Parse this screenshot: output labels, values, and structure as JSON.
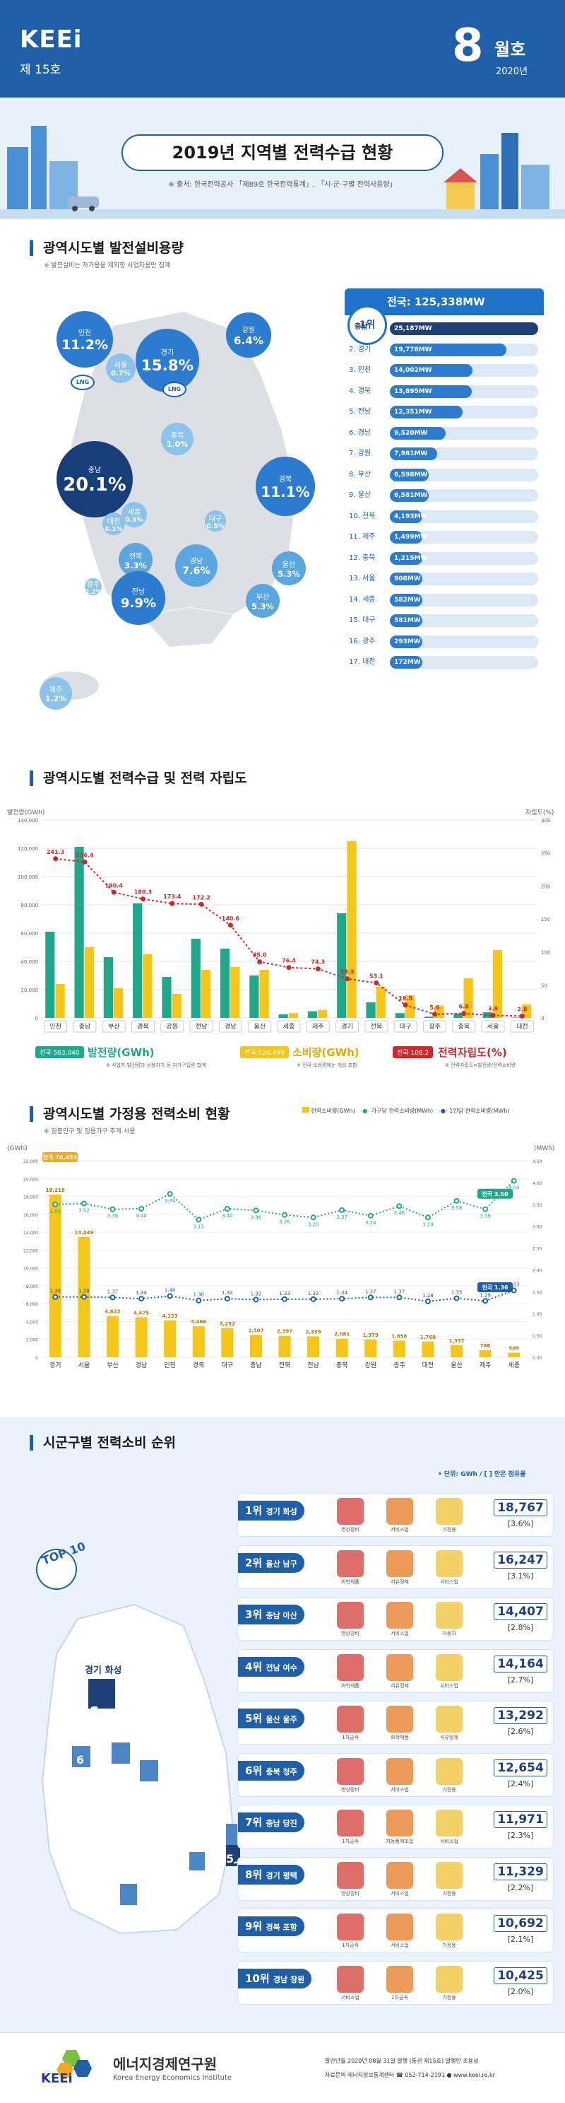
{
  "header": {
    "brand": "KEEi",
    "issue": "제 15호",
    "month": "8",
    "month_label": "월호",
    "year": "2020년"
  },
  "banner": {
    "title": "2019년 지역별 전력수급 현황",
    "source": "※ 출처: 한국전력공사 「제89호 한국전력통계」, 「시·군·구별 전력사용량」"
  },
  "sec1": {
    "title": "광역시도별 발전설비용량",
    "note": "※ 발전설비는 자가용을 제외한 사업자용만 집계",
    "bubbles": [
      {
        "region": "인천",
        "pct": "11.2%",
        "color": "#2b7bd0"
      },
      {
        "region": "경기",
        "pct": "15.8%",
        "color": "#2b7bd0"
      },
      {
        "region": "강원",
        "pct": "6.4%",
        "color": "#2b7bd0"
      },
      {
        "region": "서울",
        "pct": "0.7%",
        "color": "#8bc3ea"
      },
      {
        "region": "충북",
        "pct": "1.0%",
        "color": "#8bc3ea"
      },
      {
        "region": "세종",
        "pct": "0.5%",
        "color": "#8bc3ea"
      },
      {
        "region": "충남",
        "pct": "20.1%",
        "color": "#163f7a"
      },
      {
        "region": "경북",
        "pct": "11.1%",
        "color": "#2b7bd0"
      },
      {
        "region": "대전",
        "pct": "0.1%",
        "color": "#8bc3ea"
      },
      {
        "region": "전북",
        "pct": "3.3%",
        "color": "#5aa6e0"
      },
      {
        "region": "대구",
        "pct": "0.5%",
        "color": "#8bc3ea"
      },
      {
        "region": "경남",
        "pct": "7.6%",
        "color": "#5aa6e0"
      },
      {
        "region": "울산",
        "pct": "5.3%",
        "color": "#5aa6e0"
      },
      {
        "region": "광주",
        "pct": "0.2%",
        "color": "#8bc3ea"
      },
      {
        "region": "전남",
        "pct": "9.9%",
        "color": "#2b7bd0"
      },
      {
        "region": "부산",
        "pct": "5.3%",
        "color": "#5aa6e0"
      },
      {
        "region": "제주",
        "pct": "1.2%",
        "color": "#8bc3ea"
      }
    ],
    "lng": "LNG",
    "total": "전국: 125,338MW",
    "rank1": "1위",
    "ranks": [
      {
        "label": "충남",
        "value": "25,187MW"
      },
      {
        "label": "2. 경기",
        "value": "19,778MW"
      },
      {
        "label": "3. 인천",
        "value": "14,002MW"
      },
      {
        "label": "4. 경북",
        "value": "13,895MW"
      },
      {
        "label": "5. 전남",
        "value": "12,351MW"
      },
      {
        "label": "6. 경남",
        "value": "9,520MW"
      },
      {
        "label": "7. 강원",
        "value": "7,981MW"
      },
      {
        "label": "8. 부산",
        "value": "6,598MW"
      },
      {
        "label": "9. 울산",
        "value": "6,581MW"
      },
      {
        "label": "10. 전북",
        "value": "4,193MW"
      },
      {
        "label": "11. 제주",
        "value": "1,499MW"
      },
      {
        "label": "12. 충북",
        "value": "1,215MW"
      },
      {
        "label": "13. 서울",
        "value": "908MW"
      },
      {
        "label": "14. 세종",
        "value": "582MW"
      },
      {
        "label": "15. 대구",
        "value": "581MW"
      },
      {
        "label": "16. 광주",
        "value": "293MW"
      },
      {
        "label": "17. 대전",
        "value": "172MW"
      }
    ],
    "rank_values": [
      25187,
      19778,
      14002,
      13895,
      12351,
      9520,
      7981,
      6598,
      6581,
      4193,
      1499,
      1215,
      908,
      582,
      581,
      293,
      172
    ]
  },
  "sec2": {
    "title": "광역시도별 전력수급 및 전력 자립도",
    "y_left_label": "발전량(GWh)",
    "y_right_label": "자립도(%)",
    "legend_gen_badge": "전국 563,040",
    "legend_gen": "발전량(GWh)",
    "legend_gen_note": "※ 사업자 발전량과 상용자가 등 자가구입량 합계",
    "legend_use_badge": "전국 520,499",
    "legend_use": "소비량(GWh)",
    "legend_use_note": "※ 전국 소비량에는 개성 포함",
    "legend_ind_badge": "전국 108.2",
    "legend_ind": "전력자립도(%)",
    "legend_ind_note": "※ 전력자립도=발전량/전력소비량"
  },
  "chart_data": [
    {
      "type": "bar",
      "title": "광역시도별 전력수급 및 전력 자립도",
      "categories": [
        "인천",
        "충남",
        "부산",
        "경북",
        "강원",
        "전남",
        "경남",
        "울산",
        "세종",
        "제주",
        "경기",
        "전북",
        "대구",
        "광주",
        "충북",
        "서울",
        "대전"
      ],
      "series": [
        {
          "name": "발전량(GWh)",
          "values": [
            61000,
            121000,
            43000,
            81000,
            29000,
            56000,
            49000,
            30000,
            2500,
            4700,
            74000,
            11000,
            3400,
            900,
            3100,
            4000,
            300
          ]
        },
        {
          "name": "소비량(GWh)",
          "values": [
            24000,
            50000,
            21000,
            45000,
            17000,
            34000,
            36000,
            34000,
            3400,
            5600,
            125000,
            22000,
            16000,
            8700,
            28000,
            48000,
            9600
          ]
        },
        {
          "name": "전력자립도(%)",
          "values": [
            241.3,
            236.4,
            190.4,
            180.3,
            173.4,
            172.2,
            140.6,
            85.0,
            76.4,
            74.3,
            59.3,
            53.1,
            19.5,
            5.6,
            6.8,
            3.9,
            2.8
          ]
        }
      ],
      "ylim_left": [
        0,
        140000
      ],
      "ylim_right": [
        0,
        300
      ],
      "left_ticks": [
        "140,000",
        "120,000",
        "100,000",
        "80,000",
        "60,000",
        "40,000",
        "20,000",
        "0"
      ],
      "right_ticks": [
        "300",
        "250",
        "200",
        "150",
        "100",
        "50",
        "0"
      ]
    },
    {
      "type": "bar",
      "title": "광역시도별 가정용 전력소비 현황",
      "categories": [
        "경기",
        "서울",
        "부산",
        "경남",
        "인천",
        "경북",
        "대구",
        "충남",
        "전북",
        "전남",
        "충북",
        "강원",
        "광주",
        "대전",
        "울산",
        "제주",
        "세종"
      ],
      "series": [
        {
          "name": "전력소비량(GWh)",
          "values": [
            18218,
            13449,
            4623,
            4475,
            4123,
            3466,
            3252,
            2507,
            2397,
            2339,
            2081,
            1979,
            1858,
            1760,
            1357,
            786,
            509
          ]
        },
        {
          "name": "가구당 전력소비량(MWh)",
          "values": [
            3.5,
            3.52,
            3.39,
            3.4,
            3.74,
            3.15,
            3.4,
            3.36,
            3.26,
            3.2,
            3.37,
            3.24,
            3.46,
            3.2,
            3.58,
            3.39,
            4.04
          ]
        },
        {
          "name": "1인당 전력소비량(MWh)",
          "values": [
            1.38,
            1.38,
            1.37,
            1.34,
            1.4,
            1.3,
            1.34,
            1.32,
            1.33,
            1.33,
            1.34,
            1.37,
            1.37,
            1.28,
            1.35,
            1.29,
            1.53
          ]
        }
      ],
      "national_avg_household": "전국 3.50",
      "national_avg_person": "전국 1.36",
      "national_total": "전국 70,453",
      "ylim_left": [
        0,
        22000
      ],
      "left_ticks": [
        "22,000",
        "20,000",
        "18,000",
        "16,000",
        "14,000",
        "12,000",
        "10,000",
        "8,000",
        "6,000",
        "4,000",
        "2,000",
        "0"
      ],
      "right_ticks": [
        "4.50",
        "4.00",
        "3.50",
        "3.00",
        "2.50",
        "2.00",
        "1.50",
        "1.00",
        "0.50",
        "0.00"
      ]
    }
  ],
  "sec3": {
    "title": "광역시도별 가정용 전력소비 현황",
    "note": "※ 임봉안구 및 임용가구 추계 사용",
    "legend1": "전력소비량(GWh)",
    "legend2": "가구당 전력소비량(MWh)",
    "legend3": "1인당 전력소비량(MWh)",
    "unit_left": "(GWh)",
    "unit_right": "(MWh)"
  },
  "sec4": {
    "title": "시군구별 전력소비 순위",
    "unit": "• 단위: GWh / [ ] 안은 점유율",
    "top10": "TOP 10",
    "map_labels": [
      "경기 화성",
      "1",
      "8",
      "3",
      "6",
      "9",
      "7",
      "10",
      "5",
      "2",
      "4"
    ],
    "items": [
      {
        "rank": "1위",
        "name": "경기 화성",
        "value": "18,767",
        "pct": "[3.6%]",
        "icons": [
          "영상장비",
          "서비스업",
          "가정용"
        ]
      },
      {
        "rank": "2위",
        "name": "울산 남구",
        "value": "16,247",
        "pct": "[3.1%]",
        "icons": [
          "화학제품",
          "석유정제",
          "서비스업"
        ]
      },
      {
        "rank": "3위",
        "name": "충남 아산",
        "value": "14,407",
        "pct": "[2.8%]",
        "icons": [
          "영상장비",
          "서비스업",
          "자동차"
        ]
      },
      {
        "rank": "4위",
        "name": "전남 여수",
        "value": "14,164",
        "pct": "[2.7%]",
        "icons": [
          "화학제품",
          "석유정제",
          "서비스업"
        ]
      },
      {
        "rank": "5위",
        "name": "울산 울주",
        "value": "13,292",
        "pct": "[2.6%]",
        "icons": [
          "1차금속",
          "화학제품",
          "석유정제"
        ]
      },
      {
        "rank": "6위",
        "name": "충북 청주",
        "value": "12,654",
        "pct": "[2.4%]",
        "icons": [
          "영상장비",
          "서비스업",
          "가정용"
        ]
      },
      {
        "rank": "7위",
        "name": "충남 당진",
        "value": "11,971",
        "pct": "[2.3%]",
        "icons": [
          "1차금속",
          "자동품제조업",
          "서비스업"
        ]
      },
      {
        "rank": "8위",
        "name": "경기 평택",
        "value": "11,329",
        "pct": "[2.2%]",
        "icons": [
          "영상장비",
          "서비스업",
          "가정용"
        ]
      },
      {
        "rank": "9위",
        "name": "경북 포항",
        "value": "10,692",
        "pct": "[2.1%]",
        "icons": [
          "1차금속",
          "서비스업",
          "가정용"
        ]
      },
      {
        "rank": "10위",
        "name": "경남 창원",
        "value": "10,425",
        "pct": "[2.0%]",
        "icons": [
          "서비스업",
          "1차금속",
          "가정용"
        ]
      }
    ]
  },
  "footer": {
    "org_brand": "KEEi",
    "org_name": "에너지경제연구원",
    "org_name_en": "Korea Energy Economics Institute",
    "line1": "발간년월 2020년 08월 31일 발행 (통권 제15호)  발행인 조용성",
    "line2": "자료문의 에너지정보통계센터  ☎ 052-714-2191  ● www.keei.re.kr"
  }
}
